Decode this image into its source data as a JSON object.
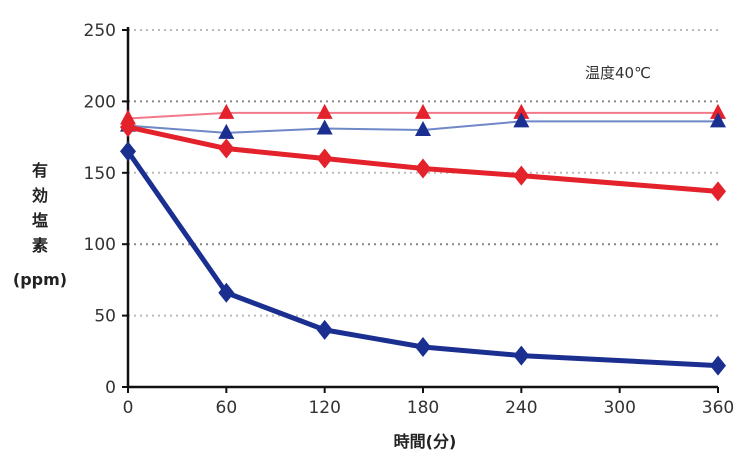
{
  "chart_data": {
    "type": "line",
    "title": "",
    "annotation": "温度40℃",
    "xlabel": "時間(分)",
    "ylabel": [
      "有",
      "効",
      "塩",
      "素",
      "(ppm)"
    ],
    "x": [
      0,
      60,
      120,
      180,
      240,
      300,
      360
    ],
    "x_ticks": [
      "0",
      "60",
      "120",
      "180",
      "240",
      "300",
      "360"
    ],
    "y_ticks": [
      "0",
      "50",
      "100",
      "150",
      "200",
      "250"
    ],
    "xlim": [
      0,
      360
    ],
    "ylim": [
      0,
      250
    ],
    "grid": "horizontal dotted",
    "series": [
      {
        "color": "#f07a8a",
        "marker": "triangle",
        "weight": "thin",
        "x": [
          0,
          60,
          120,
          180,
          240,
          360
        ],
        "values": [
          188,
          192,
          192,
          192,
          192,
          192
        ]
      },
      {
        "color": "#6f88c8",
        "marker": "triangle-navy",
        "weight": "thin",
        "x": [
          0,
          60,
          120,
          180,
          240,
          360
        ],
        "values": [
          183,
          178,
          181,
          180,
          186,
          186
        ]
      },
      {
        "color": "#e3222b",
        "marker": "diamond",
        "weight": "thick",
        "x": [
          0,
          60,
          120,
          180,
          240,
          360
        ],
        "values": [
          182,
          167,
          160,
          153,
          148,
          137
        ]
      },
      {
        "color": "#1a2f8f",
        "marker": "diamond",
        "weight": "thick",
        "x": [
          0,
          60,
          120,
          180,
          240,
          360
        ],
        "values": [
          165,
          66,
          40,
          28,
          22,
          15
        ]
      }
    ]
  }
}
